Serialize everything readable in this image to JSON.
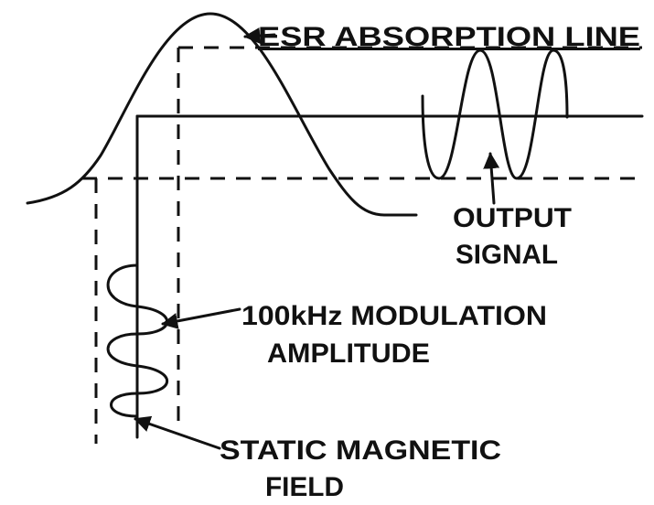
{
  "labels": [
    {
      "lines": [
        "ESR ABSORPTION LINE"
      ]
    },
    {
      "lines": [
        "OUTPUT",
        "SIGNAL"
      ]
    },
    {
      "lines": [
        "100kHz MODULATION",
        "AMPLITUDE"
      ]
    },
    {
      "lines": [
        "STATIC MAGNETIC",
        "FIELD"
      ]
    }
  ]
}
